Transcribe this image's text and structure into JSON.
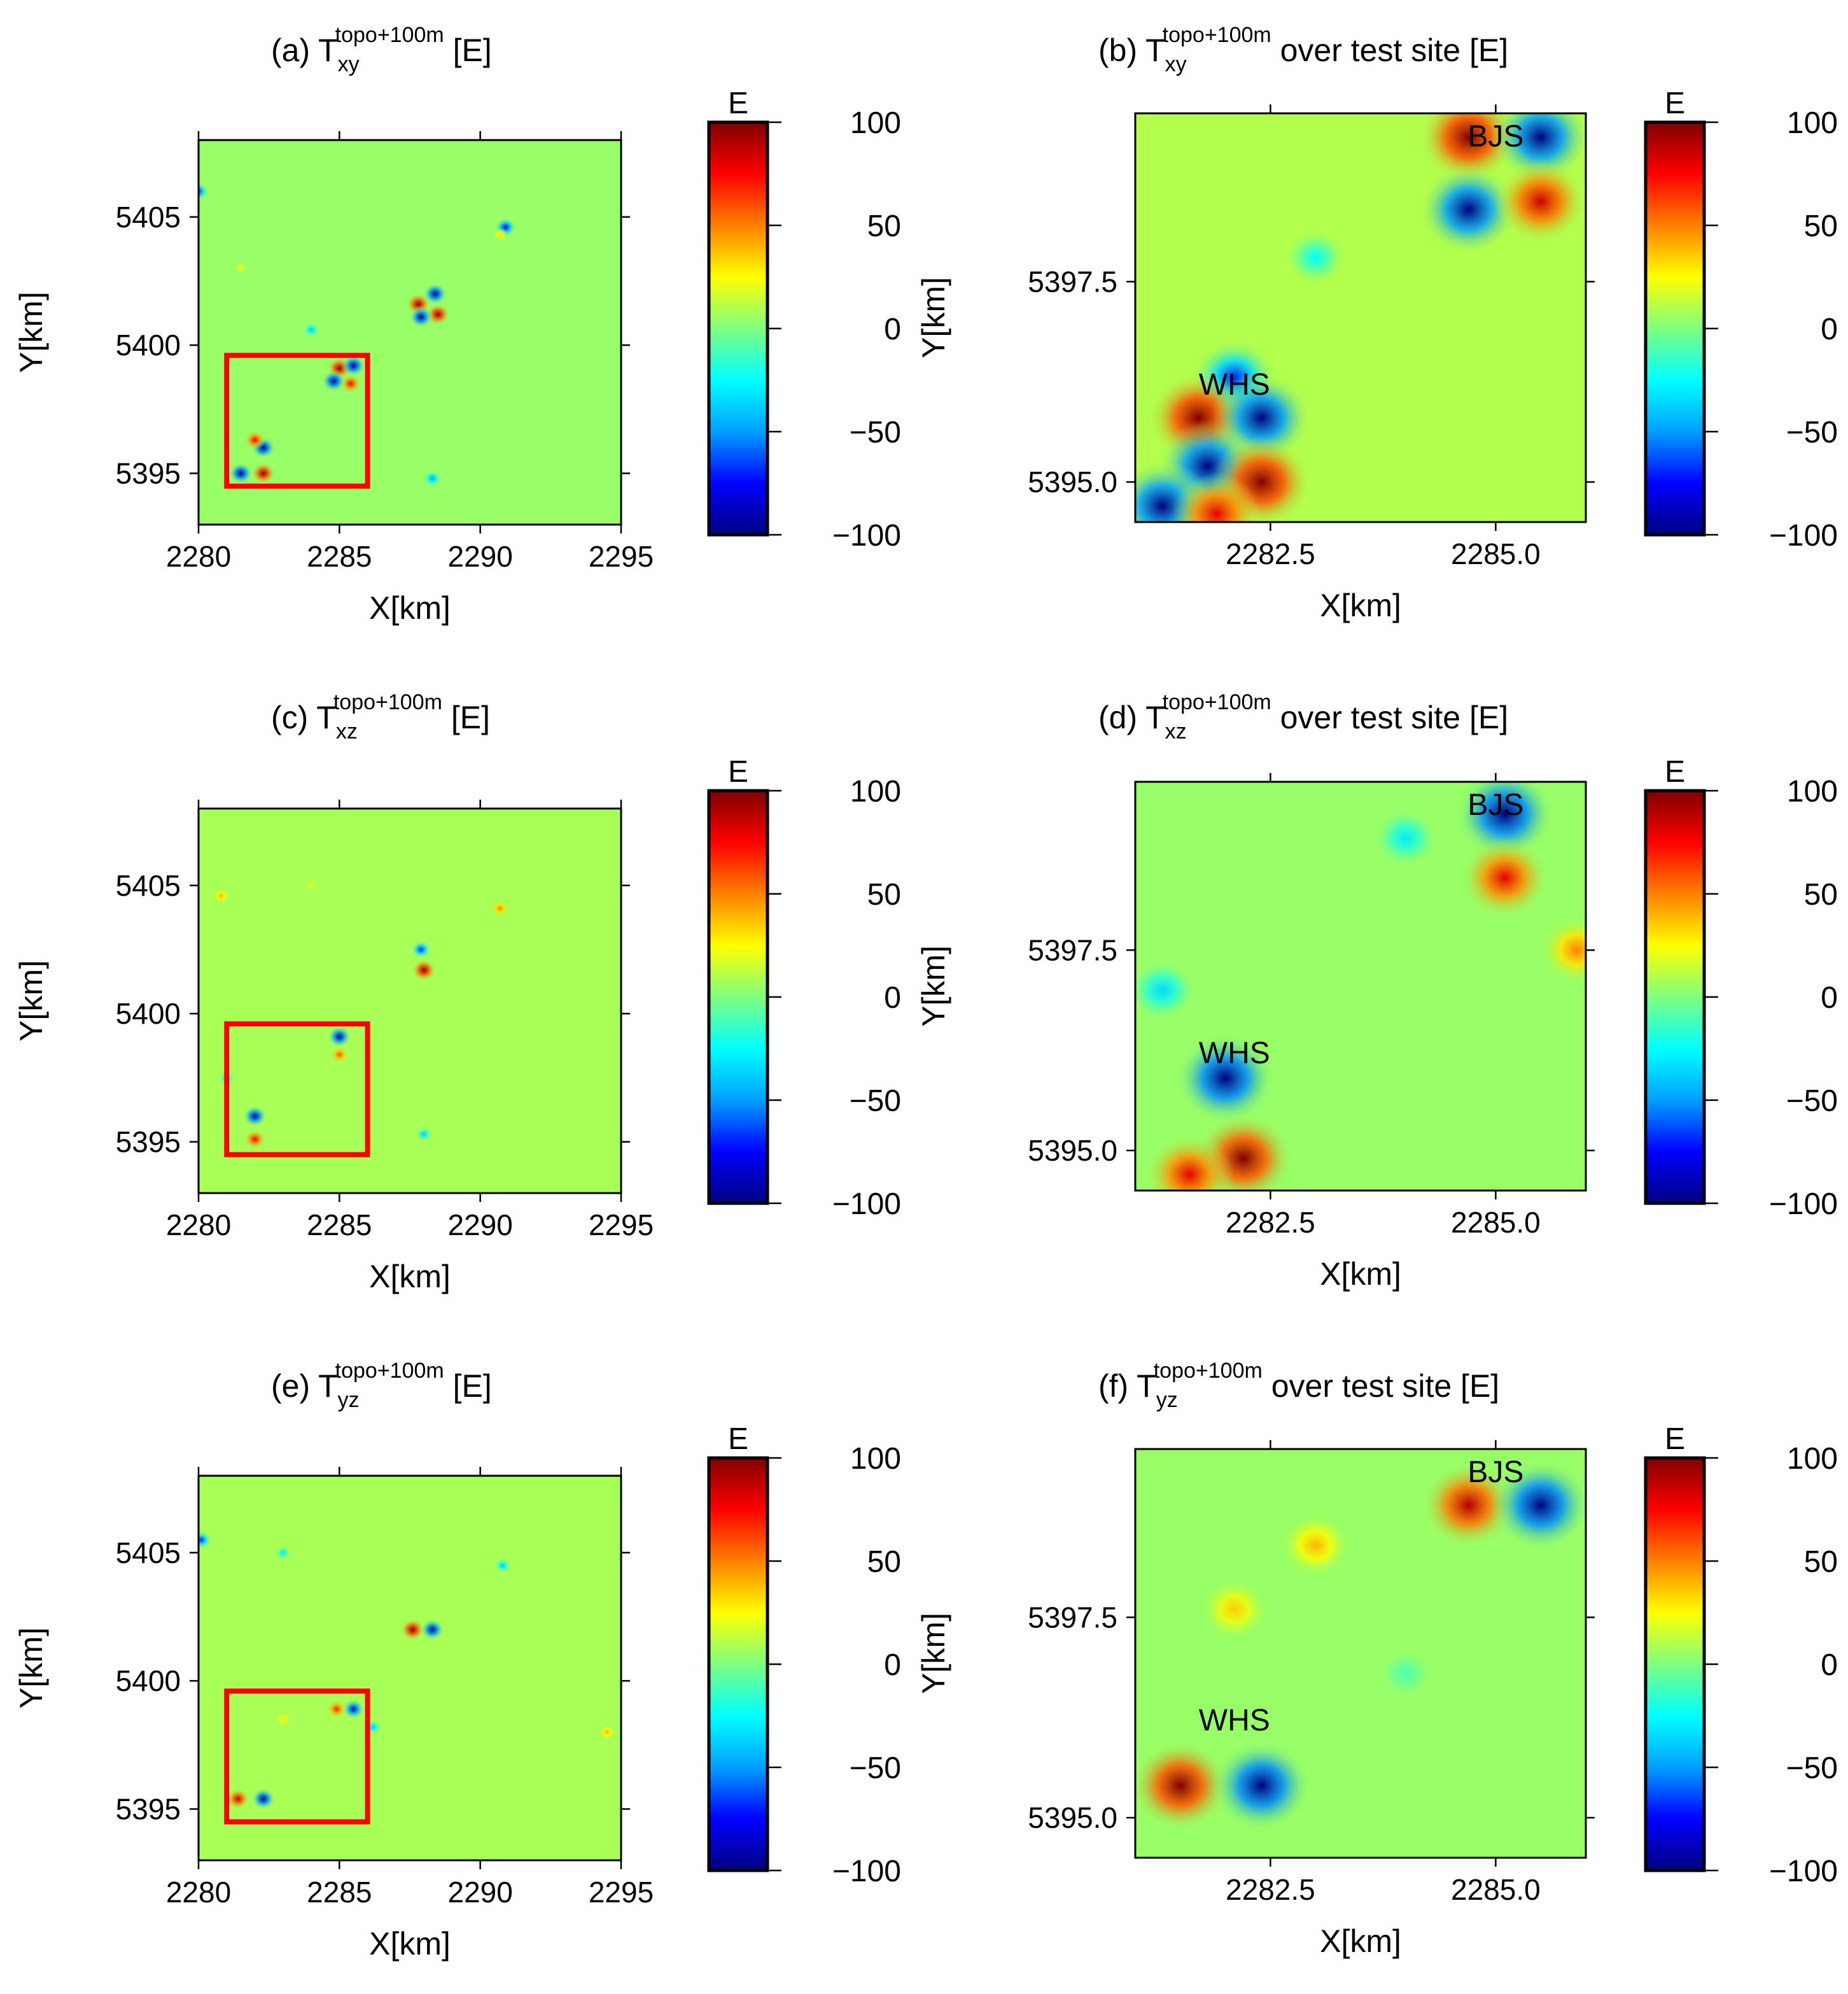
{
  "figure": {
    "panels": [
      {
        "id": "a",
        "prefix": "(a) T",
        "sup": "topo+100m",
        "sub": "xy",
        "suffix": " [E]",
        "x_ticks": [
          "2280",
          "2285",
          "2290",
          "2295"
        ],
        "y_ticks": [
          "5395",
          "5400",
          "5405"
        ],
        "xlabel": "X[km]",
        "ylabel": "Y[km]",
        "site_box": "test site",
        "labels": []
      },
      {
        "id": "b",
        "prefix": "(b) T",
        "sup": "topo+100m",
        "sub": "xy",
        "suffix": " over test site [E]",
        "x_ticks": [
          "2282.5",
          "2285.0"
        ],
        "y_ticks": [
          "5395.0",
          "5397.5"
        ],
        "xlabel": "X[km]",
        "ylabel": "Y[km]",
        "labels": [
          "WHS",
          "BJS"
        ]
      },
      {
        "id": "c",
        "prefix": "(c) T",
        "sup": "topo+100m",
        "sub": "xz",
        "suffix": " [E]",
        "x_ticks": [
          "2280",
          "2285",
          "2290",
          "2295"
        ],
        "y_ticks": [
          "5395",
          "5400",
          "5405"
        ],
        "xlabel": "X[km]",
        "ylabel": "Y[km]",
        "site_box": "test site",
        "labels": []
      },
      {
        "id": "d",
        "prefix": "(d) T",
        "sup": "topo+100m",
        "sub": "xz",
        "suffix": " over test site [E]",
        "x_ticks": [
          "2282.5",
          "2285.0"
        ],
        "y_ticks": [
          "5395.0",
          "5397.5"
        ],
        "xlabel": "X[km]",
        "ylabel": "Y[km]",
        "labels": [
          "WHS",
          "BJS"
        ]
      },
      {
        "id": "e",
        "prefix": "(e) T",
        "sup": "topo+100m",
        "sub": "yz",
        "suffix": " [E]",
        "x_ticks": [
          "2280",
          "2285",
          "2290",
          "2295"
        ],
        "y_ticks": [
          "5395",
          "5400",
          "5405"
        ],
        "xlabel": "X[km]",
        "ylabel": "Y[km]",
        "site_box": "test site",
        "labels": []
      },
      {
        "id": "f",
        "prefix": "(f) T",
        "sup": "topo+100m",
        "sub": "yz",
        "suffix": " over test site [E]",
        "x_ticks": [
          "2282.5",
          "2285.0"
        ],
        "y_ticks": [
          "5395.0",
          "5397.5"
        ],
        "xlabel": "X[km]",
        "ylabel": "Y[km]",
        "labels": [
          "WHS",
          "BJS"
        ]
      }
    ],
    "colorbar": {
      "title": "E",
      "ticks": [
        "100",
        "50",
        "0",
        "−50",
        "−100"
      ]
    },
    "colormap_stops": [
      "#000080",
      "#0000ff",
      "#00a0ff",
      "#00ffff",
      "#7fff7f",
      "#ffff00",
      "#ff8000",
      "#ff0000",
      "#800000"
    ],
    "frame_color": "#000000",
    "site_box_color": "#ff0000"
  },
  "chart_data": [
    {
      "type": "heatmap",
      "panel": "a",
      "title": "(a) T_xy^(topo+100m) [E]",
      "xlabel": "X[km]",
      "ylabel": "Y[km]",
      "xlim": [
        2280,
        2295
      ],
      "ylim": [
        5393,
        5408
      ],
      "clim": [
        -100,
        100
      ],
      "colorbar_label": "E",
      "background": 5,
      "test_site_box": {
        "x": [
          2281,
          2286
        ],
        "y": [
          5394.5,
          5399.6
        ]
      },
      "anomalies": [
        {
          "x": 2287.8,
          "y": 5401.6,
          "value": 100
        },
        {
          "x": 2288.5,
          "y": 5401.2,
          "value": 100
        },
        {
          "x": 2287.9,
          "y": 5401.1,
          "value": -100
        },
        {
          "x": 2288.4,
          "y": 5402.0,
          "value": -100
        },
        {
          "x": 2290.9,
          "y": 5404.6,
          "value": -80
        },
        {
          "x": 2290.7,
          "y": 5404.3,
          "value": 30
        },
        {
          "x": 2285.0,
          "y": 5399.1,
          "value": 100
        },
        {
          "x": 2285.4,
          "y": 5398.5,
          "value": 80
        },
        {
          "x": 2284.8,
          "y": 5398.6,
          "value": -100
        },
        {
          "x": 2285.5,
          "y": 5399.2,
          "value": -100
        },
        {
          "x": 2282.3,
          "y": 5396.0,
          "value": -100
        },
        {
          "x": 2282.0,
          "y": 5396.3,
          "value": 80
        },
        {
          "x": 2281.5,
          "y": 5395.0,
          "value": -100
        },
        {
          "x": 2282.3,
          "y": 5395.0,
          "value": 100
        },
        {
          "x": 2280.0,
          "y": 5406.0,
          "value": -70
        },
        {
          "x": 2288.3,
          "y": 5394.8,
          "value": -50
        },
        {
          "x": 2284.0,
          "y": 5400.6,
          "value": -40
        },
        {
          "x": 2281.5,
          "y": 5403.0,
          "value": 20
        }
      ]
    },
    {
      "type": "heatmap",
      "panel": "b",
      "title": "(b) T_xy^(topo+100m) over test site [E]",
      "xlabel": "X[km]",
      "ylabel": "Y[km]",
      "xlim": [
        2281,
        2286
      ],
      "ylim": [
        5394.5,
        5399.6
      ],
      "clim": [
        -100,
        100
      ],
      "colorbar_label": "E",
      "background": 10,
      "site_labels": [
        {
          "text": "WHS",
          "x": 2282.1,
          "y": 5396.2
        },
        {
          "text": "BJS",
          "x": 2285.0,
          "y": 5399.3
        }
      ],
      "anomalies": [
        {
          "x": 2284.7,
          "y": 5399.3,
          "value": 100
        },
        {
          "x": 2285.5,
          "y": 5399.3,
          "value": -100
        },
        {
          "x": 2284.7,
          "y": 5398.4,
          "value": -100
        },
        {
          "x": 2285.5,
          "y": 5398.5,
          "value": 85
        },
        {
          "x": 2283.0,
          "y": 5397.8,
          "value": -25
        },
        {
          "x": 2282.1,
          "y": 5396.3,
          "value": -70
        },
        {
          "x": 2281.7,
          "y": 5395.8,
          "value": 100
        },
        {
          "x": 2282.4,
          "y": 5395.8,
          "value": -100
        },
        {
          "x": 2281.8,
          "y": 5395.2,
          "value": -100
        },
        {
          "x": 2282.4,
          "y": 5395.0,
          "value": 100
        },
        {
          "x": 2281.3,
          "y": 5394.7,
          "value": -100
        },
        {
          "x": 2281.9,
          "y": 5394.6,
          "value": 80
        }
      ]
    },
    {
      "type": "heatmap",
      "panel": "c",
      "title": "(c) T_xz^(topo+100m) [E]",
      "xlabel": "X[km]",
      "ylabel": "Y[km]",
      "xlim": [
        2280,
        2295
      ],
      "ylim": [
        5393,
        5408
      ],
      "clim": [
        -100,
        100
      ],
      "colorbar_label": "E",
      "background": 8,
      "test_site_box": {
        "x": [
          2281,
          2286
        ],
        "y": [
          5394.5,
          5399.6
        ]
      },
      "anomalies": [
        {
          "x": 2288.0,
          "y": 5401.7,
          "value": 100
        },
        {
          "x": 2287.9,
          "y": 5402.5,
          "value": -70
        },
        {
          "x": 2290.7,
          "y": 5404.1,
          "value": 50
        },
        {
          "x": 2285.0,
          "y": 5399.1,
          "value": -100
        },
        {
          "x": 2285.0,
          "y": 5398.4,
          "value": 60
        },
        {
          "x": 2282.0,
          "y": 5396.0,
          "value": -100
        },
        {
          "x": 2282.0,
          "y": 5395.1,
          "value": 80
        },
        {
          "x": 2281.0,
          "y": 5397.5,
          "value": -35
        },
        {
          "x": 2280.8,
          "y": 5404.6,
          "value": 40
        },
        {
          "x": 2284.0,
          "y": 5405.0,
          "value": 20
        },
        {
          "x": 2288.0,
          "y": 5395.3,
          "value": -40
        }
      ]
    },
    {
      "type": "heatmap",
      "panel": "d",
      "title": "(d) T_xz^(topo+100m) over test site [E]",
      "xlabel": "X[km]",
      "ylabel": "Y[km]",
      "xlim": [
        2281,
        2286
      ],
      "ylim": [
        5394.5,
        5399.6
      ],
      "clim": [
        -100,
        100
      ],
      "colorbar_label": "E",
      "background": 5,
      "site_labels": [
        {
          "text": "WHS",
          "x": 2282.1,
          "y": 5396.2
        },
        {
          "text": "BJS",
          "x": 2285.0,
          "y": 5399.3
        }
      ],
      "anomalies": [
        {
          "x": 2285.1,
          "y": 5399.2,
          "value": -100
        },
        {
          "x": 2284.0,
          "y": 5398.9,
          "value": -30
        },
        {
          "x": 2285.1,
          "y": 5398.4,
          "value": 80
        },
        {
          "x": 2285.9,
          "y": 5397.5,
          "value": 50
        },
        {
          "x": 2281.3,
          "y": 5397.0,
          "value": -35
        },
        {
          "x": 2282.0,
          "y": 5395.9,
          "value": -100
        },
        {
          "x": 2282.2,
          "y": 5394.9,
          "value": 100
        },
        {
          "x": 2281.6,
          "y": 5394.7,
          "value": 80
        }
      ]
    },
    {
      "type": "heatmap",
      "panel": "e",
      "title": "(e) T_yz^(topo+100m) [E]",
      "xlabel": "X[km]",
      "ylabel": "Y[km]",
      "xlim": [
        2280,
        2295
      ],
      "ylim": [
        5393,
        5408
      ],
      "clim": [
        -100,
        100
      ],
      "colorbar_label": "E",
      "background": 8,
      "test_site_box": {
        "x": [
          2281,
          2286
        ],
        "y": [
          5394.5,
          5399.6
        ]
      },
      "anomalies": [
        {
          "x": 2287.6,
          "y": 5402.0,
          "value": 100
        },
        {
          "x": 2288.3,
          "y": 5402.0,
          "value": -100
        },
        {
          "x": 2290.8,
          "y": 5404.5,
          "value": -40
        },
        {
          "x": 2280.1,
          "y": 5405.5,
          "value": -70
        },
        {
          "x": 2282.3,
          "y": 5395.4,
          "value": -100
        },
        {
          "x": 2281.4,
          "y": 5395.4,
          "value": 90
        },
        {
          "x": 2285.5,
          "y": 5398.9,
          "value": -90
        },
        {
          "x": 2284.9,
          "y": 5398.9,
          "value": 70
        },
        {
          "x": 2283.0,
          "y": 5398.5,
          "value": 30
        },
        {
          "x": 2294.5,
          "y": 5398.0,
          "value": 40
        },
        {
          "x": 2286.2,
          "y": 5398.2,
          "value": -40
        },
        {
          "x": 2283.0,
          "y": 5405.0,
          "value": -30
        }
      ]
    },
    {
      "type": "heatmap",
      "panel": "f",
      "title": "(f) T_yz^(topo+100m) over test site [E]",
      "xlabel": "X[km]",
      "ylabel": "Y[km]",
      "xlim": [
        2281,
        2286
      ],
      "ylim": [
        5394.5,
        5399.6
      ],
      "clim": [
        -100,
        100
      ],
      "colorbar_label": "E",
      "background": 5,
      "site_labels": [
        {
          "text": "WHS",
          "x": 2282.1,
          "y": 5396.2
        },
        {
          "text": "BJS",
          "x": 2285.0,
          "y": 5399.3
        }
      ],
      "anomalies": [
        {
          "x": 2284.7,
          "y": 5398.9,
          "value": 90
        },
        {
          "x": 2285.5,
          "y": 5398.9,
          "value": -100
        },
        {
          "x": 2283.0,
          "y": 5398.4,
          "value": 40
        },
        {
          "x": 2282.1,
          "y": 5397.6,
          "value": 35
        },
        {
          "x": 2281.5,
          "y": 5395.4,
          "value": 100
        },
        {
          "x": 2282.4,
          "y": 5395.4,
          "value": -100
        },
        {
          "x": 2284.0,
          "y": 5396.8,
          "value": -10
        }
      ]
    }
  ]
}
